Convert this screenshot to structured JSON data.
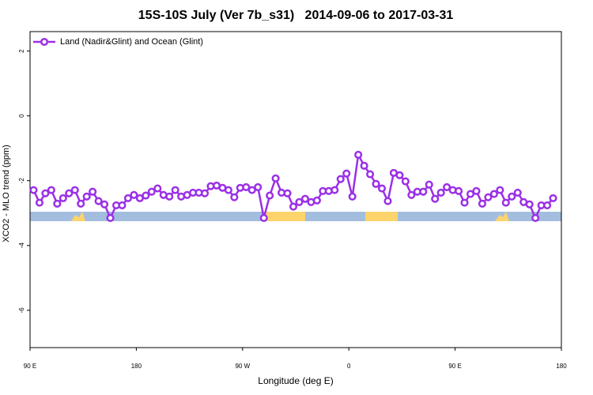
{
  "chart_data": {
    "type": "line",
    "title": "15S-10S July (Ver 7b_s31)   2014-09-06 to 2017-03-31",
    "x_label": "Longitude (deg E)",
    "y_label": "XCO2 - MLO trend (ppm)",
    "xlim": [
      90,
      540
    ],
    "ylim": [
      -7.15,
      2.6
    ],
    "xticks": [
      {
        "value": 90,
        "label": "90 E"
      },
      180,
      {
        "value": 270,
        "label": "90 W"
      },
      {
        "value": 360,
        "label": "0"
      },
      {
        "value": 450,
        "label": "90 E"
      },
      {
        "value": 540,
        "label": "180"
      }
    ],
    "yticks": [
      2,
      0,
      -2,
      -4,
      -6
    ],
    "legend": "top-left",
    "series": [
      {
        "name": "Land (Nadir&Glint) and Ocean (Glint)",
        "color": "#9b30e6",
        "x": [
          93,
          98,
          103,
          108,
          113,
          118,
          123,
          128,
          133,
          138,
          143,
          148,
          153,
          158,
          163,
          168,
          173,
          178,
          183,
          188,
          193,
          198,
          203,
          208,
          213,
          218,
          223,
          228,
          233,
          238,
          243,
          248,
          253,
          258,
          263,
          268,
          273,
          278,
          283,
          288,
          293,
          298,
          303,
          308,
          313,
          318,
          323,
          328,
          333,
          338,
          343,
          348,
          353,
          358,
          363,
          368,
          373,
          378,
          383,
          388,
          393,
          398,
          403,
          408,
          413,
          418,
          423,
          428,
          433,
          438,
          443,
          448,
          453,
          458,
          463,
          468,
          473,
          478,
          483,
          488,
          493,
          498,
          503,
          508,
          513,
          518,
          523,
          528,
          533
        ],
        "values": [
          -2.29,
          -2.68,
          -2.39,
          -2.29,
          -2.71,
          -2.54,
          -2.39,
          -2.29,
          -2.71,
          -2.49,
          -2.34,
          -2.63,
          -2.73,
          -3.15,
          -2.76,
          -2.76,
          -2.54,
          -2.44,
          -2.54,
          -2.46,
          -2.34,
          -2.24,
          -2.44,
          -2.49,
          -2.29,
          -2.49,
          -2.44,
          -2.37,
          -2.37,
          -2.39,
          -2.17,
          -2.15,
          -2.22,
          -2.29,
          -2.51,
          -2.22,
          -2.2,
          -2.29,
          -2.2,
          -3.15,
          -2.46,
          -1.93,
          -2.37,
          -2.39,
          -2.8,
          -2.66,
          -2.56,
          -2.66,
          -2.61,
          -2.32,
          -2.32,
          -2.29,
          -1.95,
          -1.78,
          -2.49,
          -1.2,
          -1.54,
          -1.8,
          -2.1,
          -2.24,
          -2.63,
          -1.76,
          -1.83,
          -2.02,
          -2.44,
          -2.34,
          -2.34,
          -2.12,
          -2.56,
          -2.37,
          -2.2,
          -2.29,
          -2.32,
          -2.68,
          -2.41,
          -2.32,
          -2.71,
          -2.51,
          -2.41,
          -2.29,
          -2.68,
          -2.49,
          -2.37,
          -2.66,
          -2.73,
          -3.15,
          -2.76,
          -2.76,
          -2.54
        ]
      }
    ]
  }
}
